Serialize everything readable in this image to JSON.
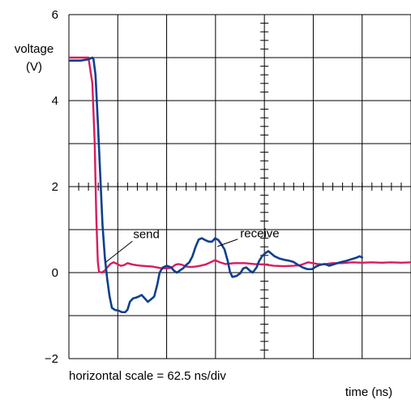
{
  "chart_data": {
    "type": "line",
    "ylabel": "voltage",
    "ylabel_unit": "(V)",
    "xlabel": "time (ns)",
    "scale_note": "horizontal scale = 62.5 ns/div",
    "ylim": [
      -2,
      6
    ],
    "xlim": [
      0,
      437.5
    ],
    "y_ticks": [
      {
        "value": -2,
        "label": "−2"
      },
      {
        "value": 0,
        "label": "0"
      },
      {
        "value": 2,
        "label": "2"
      },
      {
        "value": 4,
        "label": "4"
      },
      {
        "value": 6,
        "label": "6"
      }
    ],
    "x_div": 62.5,
    "grid": true,
    "colors": {
      "send": "#d81b60",
      "receive": "#0d3f8f",
      "grid": "#000000"
    },
    "series": [
      {
        "key": "send",
        "values": [
          [
            0,
            5.0
          ],
          [
            25,
            5.0
          ],
          [
            30,
            4.4
          ],
          [
            33,
            3.0
          ],
          [
            35,
            1.3
          ],
          [
            37,
            0.25
          ],
          [
            38.5,
            0.02
          ],
          [
            42,
            0.0
          ],
          [
            46,
            0.05
          ],
          [
            49,
            0.12
          ],
          [
            53,
            0.2
          ],
          [
            57,
            0.24
          ],
          [
            62,
            0.2
          ],
          [
            66,
            0.16
          ],
          [
            70,
            0.17
          ],
          [
            75,
            0.22
          ],
          [
            81,
            0.19
          ],
          [
            87,
            0.17
          ],
          [
            93,
            0.16
          ],
          [
            100,
            0.15
          ],
          [
            107,
            0.14
          ],
          [
            113,
            0.12
          ],
          [
            119,
            0.1
          ],
          [
            125,
            0.1
          ],
          [
            131,
            0.11
          ],
          [
            136,
            0.18
          ],
          [
            140,
            0.2
          ],
          [
            145,
            0.18
          ],
          [
            150,
            0.14
          ],
          [
            156,
            0.13
          ],
          [
            162,
            0.14
          ],
          [
            168,
            0.16
          ],
          [
            175,
            0.19
          ],
          [
            181,
            0.24
          ],
          [
            187,
            0.29
          ],
          [
            193,
            0.24
          ],
          [
            200,
            0.2
          ],
          [
            212,
            0.22
          ],
          [
            225,
            0.22
          ],
          [
            237,
            0.2
          ],
          [
            250,
            0.19
          ],
          [
            262,
            0.16
          ],
          [
            275,
            0.15
          ],
          [
            287,
            0.16
          ],
          [
            295,
            0.17
          ],
          [
            300,
            0.2
          ],
          [
            306,
            0.24
          ],
          [
            312,
            0.22
          ],
          [
            318,
            0.2
          ],
          [
            325,
            0.19
          ],
          [
            337,
            0.22
          ],
          [
            350,
            0.22
          ],
          [
            362,
            0.24
          ],
          [
            375,
            0.23
          ],
          [
            387,
            0.24
          ],
          [
            400,
            0.23
          ],
          [
            412,
            0.24
          ],
          [
            425,
            0.23
          ],
          [
            437.5,
            0.24
          ]
        ]
      },
      {
        "key": "receive",
        "values": [
          [
            0,
            4.93
          ],
          [
            15,
            4.93
          ],
          [
            25,
            4.96
          ],
          [
            30,
            5.0
          ],
          [
            31.5,
            4.96
          ],
          [
            34,
            4.6
          ],
          [
            37,
            3.5
          ],
          [
            40,
            2.3
          ],
          [
            43,
            1.1
          ],
          [
            46,
            0.35
          ],
          [
            49,
            -0.15
          ],
          [
            52,
            -0.55
          ],
          [
            55,
            -0.82
          ],
          [
            59,
            -0.87
          ],
          [
            63,
            -0.88
          ],
          [
            68,
            -0.92
          ],
          [
            72,
            -0.92
          ],
          [
            75,
            -0.86
          ],
          [
            78,
            -0.68
          ],
          [
            82,
            -0.6
          ],
          [
            86,
            -0.58
          ],
          [
            90,
            -0.55
          ],
          [
            93,
            -0.52
          ],
          [
            97,
            -0.6
          ],
          [
            101,
            -0.68
          ],
          [
            105,
            -0.62
          ],
          [
            109,
            -0.56
          ],
          [
            113,
            -0.28
          ],
          [
            116,
            0.0
          ],
          [
            120,
            0.12
          ],
          [
            125,
            0.16
          ],
          [
            131,
            0.12
          ],
          [
            134,
            0.05
          ],
          [
            138,
            0.0
          ],
          [
            142,
            0.05
          ],
          [
            146,
            0.1
          ],
          [
            150,
            0.18
          ],
          [
            154,
            0.24
          ],
          [
            158,
            0.38
          ],
          [
            162,
            0.6
          ],
          [
            166,
            0.77
          ],
          [
            170,
            0.8
          ],
          [
            175,
            0.75
          ],
          [
            179,
            0.72
          ],
          [
            183,
            0.72
          ],
          [
            187,
            0.8
          ],
          [
            191,
            0.76
          ],
          [
            195,
            0.66
          ],
          [
            199,
            0.54
          ],
          [
            203,
            0.28
          ],
          [
            206,
            0.02
          ],
          [
            209,
            -0.1
          ],
          [
            214,
            -0.08
          ],
          [
            219,
            -0.02
          ],
          [
            223,
            0.1
          ],
          [
            227,
            0.12
          ],
          [
            231,
            0.05
          ],
          [
            235,
            0.0
          ],
          [
            240,
            0.12
          ],
          [
            243,
            0.26
          ],
          [
            247,
            0.38
          ],
          [
            251,
            0.45
          ],
          [
            255,
            0.5
          ],
          [
            259,
            0.44
          ],
          [
            263,
            0.38
          ],
          [
            269,
            0.33
          ],
          [
            275,
            0.3
          ],
          [
            281,
            0.28
          ],
          [
            287,
            0.25
          ],
          [
            293,
            0.18
          ],
          [
            299,
            0.12
          ],
          [
            305,
            0.08
          ],
          [
            311,
            0.08
          ],
          [
            316,
            0.14
          ],
          [
            321,
            0.18
          ],
          [
            327,
            0.2
          ],
          [
            333,
            0.16
          ],
          [
            340,
            0.2
          ],
          [
            347,
            0.24
          ],
          [
            354,
            0.27
          ],
          [
            361,
            0.31
          ],
          [
            368,
            0.35
          ],
          [
            372,
            0.38
          ],
          [
            375,
            0.35
          ]
        ]
      }
    ],
    "annotations": [
      {
        "key": "send",
        "text": "send",
        "anchor": [
          47,
          0.24
        ]
      },
      {
        "key": "receive",
        "text": "receive",
        "anchor": [
          190,
          0.76
        ]
      }
    ]
  }
}
